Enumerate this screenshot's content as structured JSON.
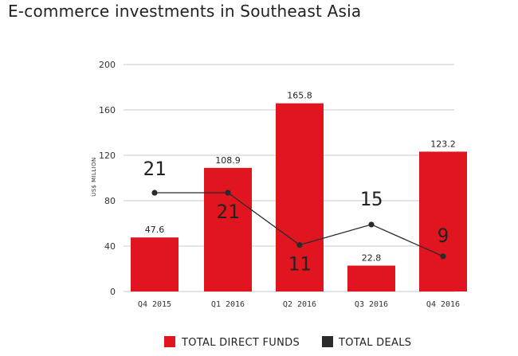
{
  "page": {
    "title": "E-commerce investments in Southeast Asia"
  },
  "chart_data": {
    "type": "bar",
    "title": "E-commerce investments in Southeast Asia",
    "ylabel": "US$ MILLION",
    "xlabel": "",
    "ylim": [
      0,
      200
    ],
    "yticks": [
      0,
      40,
      80,
      120,
      160,
      200
    ],
    "categories": [
      "Q4 2015",
      "Q1 2016",
      "Q2 2016",
      "Q3 2016",
      "Q4 2016"
    ],
    "series": [
      {
        "name": "TOTAL DIRECT FUNDS",
        "type": "bar",
        "color": "#e0151f",
        "values": [
          47.6,
          108.9,
          165.8,
          22.8,
          123.2
        ]
      },
      {
        "name": "TOTAL DEALS",
        "type": "line",
        "color": "#2b2b2b",
        "values": [
          21,
          21,
          11,
          15,
          9
        ],
        "plotted_on_y": [
          87,
          87,
          41,
          59,
          31
        ]
      }
    ],
    "grid": true,
    "legend": "bottom"
  }
}
